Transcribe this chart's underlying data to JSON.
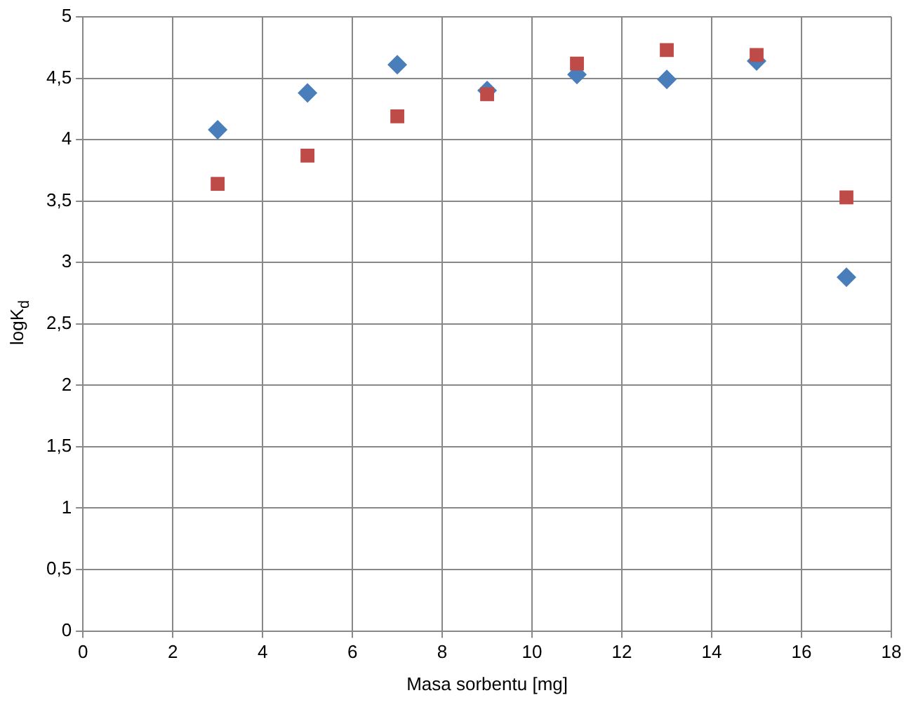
{
  "chart_data": {
    "type": "scatter",
    "xlabel": "Masa sorbentu [mg]",
    "ylabel": "logK$_{d}$",
    "xlim": [
      0,
      18
    ],
    "xticks": [
      0,
      2,
      4,
      6,
      8,
      10,
      12,
      14,
      16,
      18
    ],
    "ylim": [
      0,
      5
    ],
    "yticks": [
      0,
      {
        "value": 0.5,
        "label": "0,5"
      },
      1,
      {
        "value": 1.5,
        "label": "1,5"
      },
      2,
      {
        "value": 2.5,
        "label": "2,5"
      },
      3,
      {
        "value": 3.5,
        "label": "3,5"
      },
      4,
      {
        "value": 4.5,
        "label": "4,5"
      },
      5
    ],
    "grid": true,
    "legend": false,
    "series": [
      {
        "color": "#4a7ebb",
        "marker": "diamond",
        "x": [
          3,
          5,
          7,
          9,
          11,
          13,
          15,
          17
        ],
        "values": [
          4.08,
          4.38,
          4.61,
          4.4,
          4.53,
          4.49,
          4.64,
          2.88
        ]
      },
      {
        "color": "#be4b48",
        "marker": "square",
        "x": [
          3,
          5,
          7,
          9,
          11,
          13,
          15,
          17
        ],
        "values": [
          3.64,
          3.87,
          4.19,
          4.37,
          4.62,
          4.73,
          4.69,
          3.53
        ]
      }
    ]
  }
}
